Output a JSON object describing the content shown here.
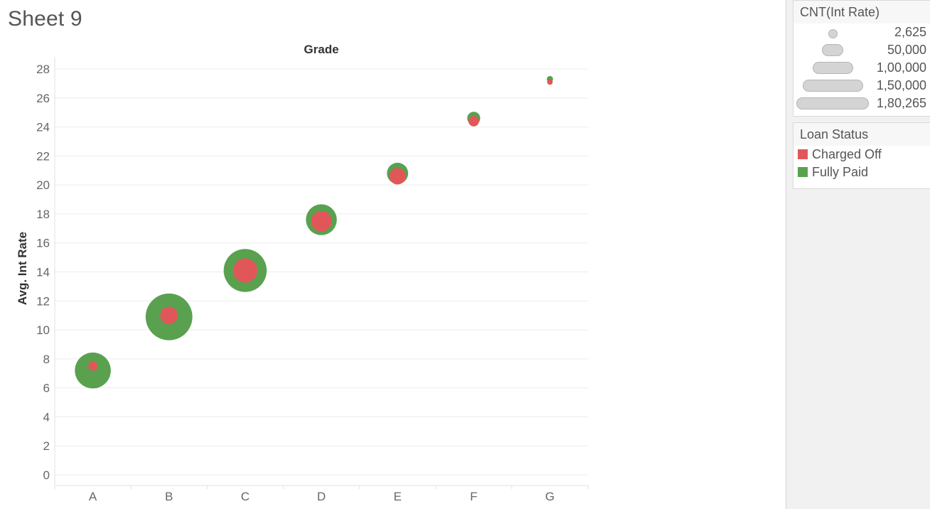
{
  "sheet": {
    "title": "Sheet 9"
  },
  "chart_data": {
    "type": "scatter",
    "title": "Grade",
    "xlabel": "",
    "ylabel": "Avg. Int Rate",
    "categories": [
      "A",
      "B",
      "C",
      "D",
      "E",
      "F",
      "G"
    ],
    "ylim": [
      0,
      28
    ],
    "yticks": [
      0,
      2,
      4,
      6,
      8,
      10,
      12,
      14,
      16,
      18,
      20,
      22,
      24,
      26,
      28
    ],
    "grid": true,
    "size_measure": "CNT(Int Rate)",
    "color_measure": "Loan Status",
    "series": [
      {
        "name": "Fully Paid",
        "color": "#59a14f",
        "values": [
          7.2,
          10.9,
          14.1,
          17.6,
          20.8,
          24.6,
          27.3
        ],
        "counts": [
          46000,
          78000,
          66000,
          34000,
          16000,
          6000,
          1400
        ]
      },
      {
        "name": "Charged Off",
        "color": "#e15759",
        "values": [
          7.5,
          11.0,
          14.1,
          17.5,
          20.6,
          24.4,
          27.1
        ],
        "counts": [
          3000,
          11000,
          21000,
          15000,
          9600,
          4000,
          1100
        ]
      }
    ]
  },
  "legend": {
    "size": {
      "title": "CNT(Int Rate)",
      "items": [
        {
          "label": "2,625",
          "count": 2625
        },
        {
          "label": "50,000",
          "count": 50000
        },
        {
          "label": "1,00,000",
          "count": 100000
        },
        {
          "label": "1,50,000",
          "count": 150000
        },
        {
          "label": "1,80,265",
          "count": 180265
        }
      ]
    },
    "color": {
      "title": "Loan Status",
      "items": [
        {
          "label": "Charged Off",
          "color": "#e15759"
        },
        {
          "label": "Fully Paid",
          "color": "#59a14f"
        }
      ]
    }
  }
}
